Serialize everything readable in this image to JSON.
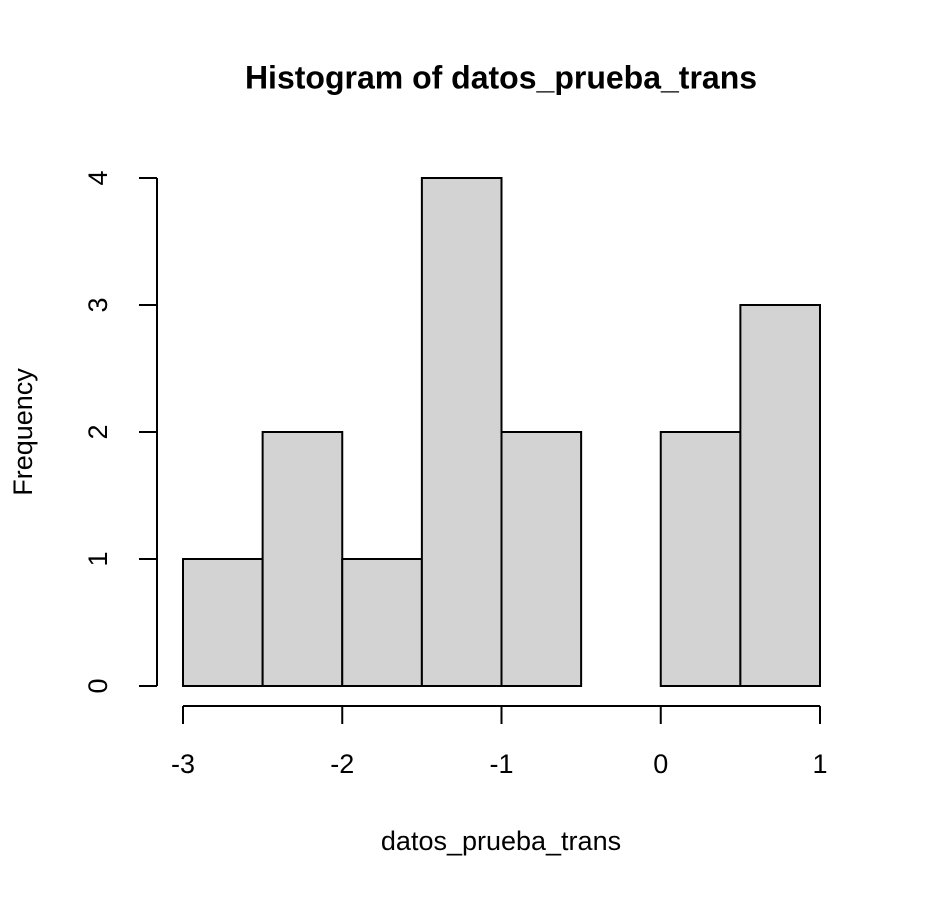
{
  "chart_data": {
    "type": "histogram",
    "title": "Histogram of datos_prueba_trans",
    "x_label": "datos_prueba_trans",
    "y_label": "Frequency",
    "bins": [
      -3,
      -2.5,
      -2,
      -1.5,
      -1,
      -0.5,
      0,
      0.5,
      1
    ],
    "counts": [
      1,
      2,
      1,
      4,
      2,
      0,
      2,
      3
    ],
    "color": "#d3d3d3",
    "xlim": [
      -3,
      1
    ],
    "xticks": [
      -3,
      -2,
      -1,
      0,
      1
    ],
    "ylim": [
      0,
      4
    ],
    "yticks": [
      0,
      1,
      2,
      3,
      4
    ]
  }
}
